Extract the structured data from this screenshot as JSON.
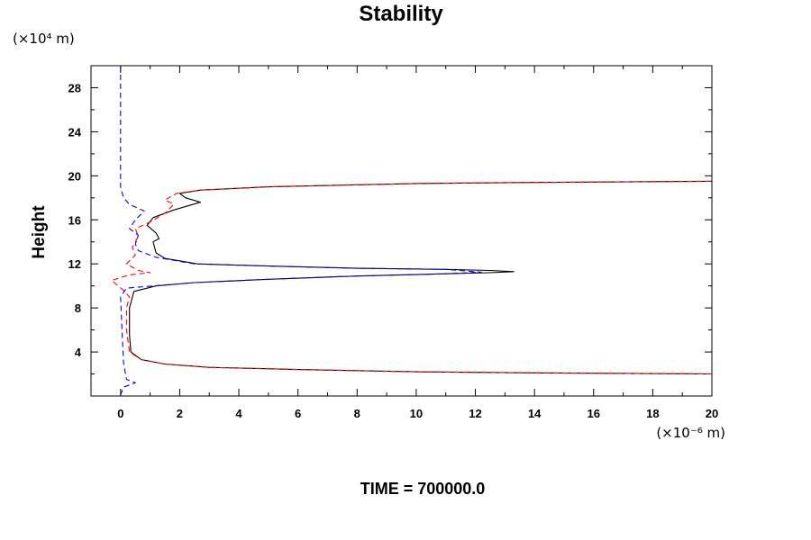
{
  "chart_data": {
    "type": "line",
    "title": "Stability",
    "ylabel": "Height",
    "yunit": "(×10⁴ m)",
    "xunit": "(×10⁻⁶ m)",
    "xlim": [
      -1,
      20
    ],
    "ylim": [
      0,
      30
    ],
    "x_ticks": [
      0,
      2,
      4,
      6,
      8,
      10,
      12,
      14,
      16,
      18,
      20
    ],
    "y_ticks": [
      4,
      8,
      12,
      16,
      20,
      24,
      28
    ],
    "grid": false,
    "series": [
      {
        "color": "#000000",
        "dash": "solid",
        "points": [
          [
            20,
            2.0
          ],
          [
            14,
            2.1
          ],
          [
            10,
            2.2
          ],
          [
            6,
            2.4
          ],
          [
            3,
            2.6
          ],
          [
            1.5,
            2.9
          ],
          [
            0.7,
            3.3
          ],
          [
            0.35,
            4.0
          ],
          [
            0.3,
            5.5
          ],
          [
            0.3,
            8.0
          ],
          [
            0.45,
            9.5
          ],
          [
            1.2,
            10.0
          ],
          [
            2.5,
            10.3
          ],
          [
            5,
            10.6
          ],
          [
            8,
            10.9
          ],
          [
            11,
            11.1
          ],
          [
            12.5,
            11.2
          ],
          [
            13.3,
            11.3
          ],
          [
            12.5,
            11.4
          ],
          [
            11,
            11.5
          ],
          [
            8,
            11.6
          ],
          [
            5,
            11.8
          ],
          [
            2.6,
            12.0
          ],
          [
            1.5,
            12.5
          ],
          [
            1.2,
            13.0
          ],
          [
            1.1,
            14.0
          ],
          [
            1.3,
            14.3
          ],
          [
            1.2,
            14.8
          ],
          [
            0.9,
            15.5
          ],
          [
            1.1,
            16.2
          ],
          [
            1.8,
            16.9
          ],
          [
            2.7,
            17.6
          ],
          [
            2.2,
            18.0
          ],
          [
            2.0,
            18.4
          ],
          [
            2.7,
            18.7
          ],
          [
            5,
            19.0
          ],
          [
            10,
            19.3
          ],
          [
            14,
            19.4
          ],
          [
            20,
            19.5
          ]
        ]
      },
      {
        "color": "#ff0000",
        "dash": "dashed",
        "points": [
          [
            20,
            2.0
          ],
          [
            14,
            2.1
          ],
          [
            10,
            2.2
          ],
          [
            6,
            2.4
          ],
          [
            3,
            2.6
          ],
          [
            1.5,
            2.9
          ],
          [
            0.7,
            3.3
          ],
          [
            0.3,
            4.0
          ],
          [
            0.2,
            6.0
          ],
          [
            0.2,
            8.0
          ],
          [
            0.3,
            9.0
          ],
          [
            0.1,
            9.6
          ],
          [
            -0.3,
            10.5
          ],
          [
            0.3,
            11.0
          ],
          [
            1.0,
            11.2
          ],
          [
            0.6,
            11.4
          ],
          [
            0.2,
            12.0
          ],
          [
            0.5,
            12.8
          ],
          [
            0.4,
            13.5
          ],
          [
            0.6,
            14.5
          ],
          [
            0.5,
            15.2
          ],
          [
            1.0,
            15.8
          ],
          [
            1.5,
            16.6
          ],
          [
            1.8,
            17.4
          ],
          [
            1.5,
            17.8
          ],
          [
            1.9,
            18.4
          ],
          [
            2.7,
            18.7
          ],
          [
            5,
            19.0
          ],
          [
            10,
            19.3
          ],
          [
            14,
            19.4
          ],
          [
            20,
            19.5
          ]
        ]
      },
      {
        "color": "#0000ff",
        "dash": "dashed",
        "points": [
          [
            0.0,
            0.1
          ],
          [
            0.1,
            0.8
          ],
          [
            0.5,
            1.2
          ],
          [
            0.2,
            1.5
          ],
          [
            0.1,
            3.0
          ],
          [
            0.05,
            6.0
          ],
          [
            0.0,
            9.0
          ],
          [
            0.2,
            9.8
          ],
          [
            2.5,
            10.3
          ],
          [
            5,
            10.6
          ],
          [
            8,
            10.9
          ],
          [
            11,
            11.1
          ],
          [
            12.2,
            11.25
          ],
          [
            11,
            11.5
          ],
          [
            8,
            11.6
          ],
          [
            5,
            11.8
          ],
          [
            2.5,
            12.0
          ],
          [
            1.2,
            12.6
          ],
          [
            0.6,
            13.2
          ],
          [
            0.5,
            13.8
          ],
          [
            0.6,
            14.6
          ],
          [
            0.3,
            15.2
          ],
          [
            0.5,
            16.0
          ],
          [
            0.8,
            16.8
          ],
          [
            0.3,
            17.4
          ],
          [
            0.1,
            18.0
          ],
          [
            0.0,
            19.0
          ],
          [
            0.0,
            30.0
          ]
        ]
      }
    ],
    "footer": "TIME = 700000.0"
  }
}
